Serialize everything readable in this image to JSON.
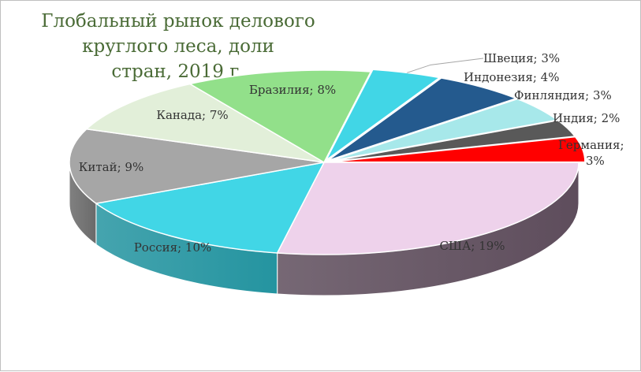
{
  "chart_data": {
    "type": "pie",
    "title_lines": [
      "Глобальный рынок делового круглого леса, доли",
      "стран, 2019 г."
    ],
    "style": "3d-exploded",
    "slices": [
      {
        "name": "США",
        "value": 19,
        "label": "США; 19%",
        "color": "#eed2eb",
        "side_color": "#5e4d5c"
      },
      {
        "name": "Россия",
        "value": 10,
        "label": "Россия; 10%",
        "color": "#41d6e6",
        "side_color": "#2494a0"
      },
      {
        "name": "Китай",
        "value": 9,
        "label": "Китай; 9%",
        "color": "#a6a6a6",
        "side_color": "#6a6a6a"
      },
      {
        "name": "Канада",
        "value": 7,
        "label": "Канада; 7%",
        "color": "#e2efd9",
        "side_color": "#a2ad9a"
      },
      {
        "name": "Бразилия",
        "value": 8,
        "label": "Бразилия; 8%",
        "color": "#92e08a",
        "side_color": "#5a9a54"
      },
      {
        "name": "Швеция",
        "value": 3,
        "label": "Швеция; 3%",
        "color": "#41d6e6",
        "side_color": "#2494a0"
      },
      {
        "name": "Индонезия",
        "value": 4,
        "label": "Индонезия; 4%",
        "color": "#245a8e",
        "side_color": "#173c60"
      },
      {
        "name": "Финляндия",
        "value": 3,
        "label": "Финляндия; 3%",
        "color": "#a7e8ea",
        "side_color": "#6fb0b2"
      },
      {
        "name": "Индия",
        "value": 2,
        "label": "Индия; 2%",
        "color": "#595959",
        "side_color": "#3a3a3a"
      },
      {
        "name": "Германия",
        "value": 3,
        "label": "Германия; 3%",
        "color": "#ff0000",
        "side_color": "#b00000"
      }
    ]
  }
}
